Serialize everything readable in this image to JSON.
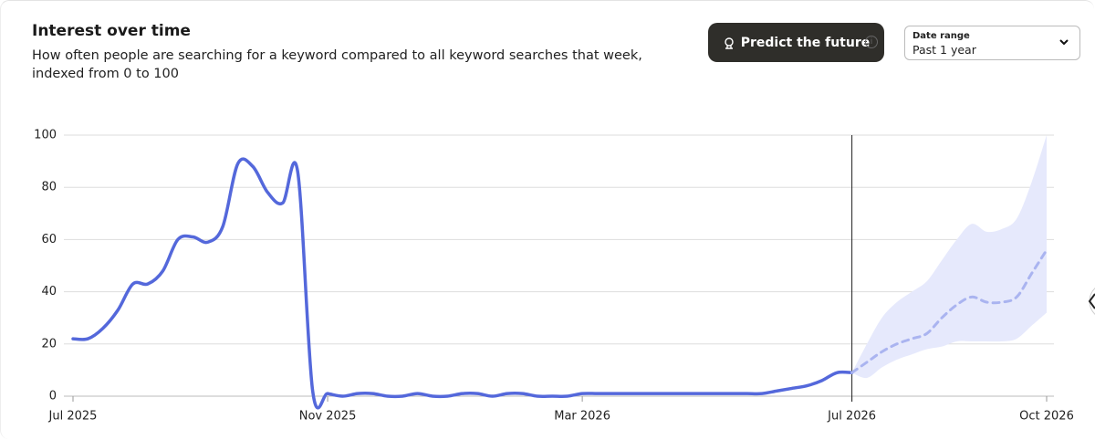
{
  "ui": {
    "button": "Predict the future",
    "dropdown_label": "Date range",
    "dropdown_value": "Past 1 year"
  },
  "chart_data": {
    "type": "line",
    "title": "Interest over time",
    "subtitle": "How often people are searching for a keyword compared to all keyword searches that week, indexed from 0 to 100",
    "x": [
      0,
      1,
      2,
      3,
      4,
      5,
      6,
      7,
      8,
      9,
      10,
      11,
      12,
      13,
      14,
      15,
      16,
      17,
      18,
      19,
      20,
      21,
      22,
      23,
      24,
      25,
      26,
      27,
      28,
      29,
      30,
      31,
      32,
      33,
      34,
      35,
      36,
      37,
      38,
      39,
      40,
      41,
      42,
      43,
      44,
      45,
      46,
      47,
      48,
      49,
      50,
      51,
      52,
      53,
      54,
      55,
      56,
      57,
      58,
      59,
      60,
      61,
      62,
      63,
      64,
      65
    ],
    "series": [
      {
        "color": "#5468db",
        "style": "solid",
        "values": [
          22,
          22,
          26,
          33,
          43,
          43,
          48,
          60,
          61,
          59,
          65,
          89,
          88,
          78,
          74,
          86,
          2,
          1,
          0,
          1,
          1,
          0,
          0,
          1,
          0,
          0,
          1,
          1,
          0,
          1,
          1,
          0,
          0,
          0,
          1,
          1,
          1,
          1,
          1,
          1,
          1,
          1,
          1,
          1,
          1,
          1,
          1,
          2,
          3,
          4,
          6,
          9,
          9,
          null,
          null,
          null,
          null,
          null,
          null,
          null,
          null,
          null,
          null,
          null,
          null,
          null
        ]
      },
      {
        "color": "#aab4f0",
        "style": "dashed",
        "values": [
          null,
          null,
          null,
          null,
          null,
          null,
          null,
          null,
          null,
          null,
          null,
          null,
          null,
          null,
          null,
          null,
          null,
          null,
          null,
          null,
          null,
          null,
          null,
          null,
          null,
          null,
          null,
          null,
          null,
          null,
          null,
          null,
          null,
          null,
          null,
          null,
          null,
          null,
          null,
          null,
          null,
          null,
          null,
          null,
          null,
          null,
          null,
          null,
          null,
          null,
          null,
          null,
          9,
          13,
          17,
          20,
          22,
          24,
          30,
          35,
          38,
          36,
          36,
          38,
          47,
          56
        ]
      }
    ],
    "band": {
      "color": "#e6e9fc",
      "lower": [
        null,
        null,
        null,
        null,
        null,
        null,
        null,
        null,
        null,
        null,
        null,
        null,
        null,
        null,
        null,
        null,
        null,
        null,
        null,
        null,
        null,
        null,
        null,
        null,
        null,
        null,
        null,
        null,
        null,
        null,
        null,
        null,
        null,
        null,
        null,
        null,
        null,
        null,
        null,
        null,
        null,
        null,
        null,
        null,
        null,
        null,
        null,
        null,
        null,
        null,
        null,
        null,
        9,
        7,
        11,
        14,
        16,
        18,
        19,
        21,
        21,
        21,
        21,
        22,
        27,
        32
      ],
      "upper": [
        null,
        null,
        null,
        null,
        null,
        null,
        null,
        null,
        null,
        null,
        null,
        null,
        null,
        null,
        null,
        null,
        null,
        null,
        null,
        null,
        null,
        null,
        null,
        null,
        null,
        null,
        null,
        null,
        null,
        null,
        null,
        null,
        null,
        null,
        null,
        null,
        null,
        null,
        null,
        null,
        null,
        null,
        null,
        null,
        null,
        null,
        null,
        null,
        null,
        null,
        null,
        null,
        9,
        20,
        30,
        36,
        40,
        44,
        52,
        60,
        66,
        63,
        64,
        68,
        82,
        100
      ]
    },
    "marker_x": 52,
    "xlim": [
      0,
      65
    ],
    "xticks": [
      {
        "value": 0,
        "label": "Jul 2025"
      },
      {
        "value": 17,
        "label": "Nov 2025"
      },
      {
        "value": 34,
        "label": "Mar 2026"
      },
      {
        "value": 52,
        "label": "Jul 2026"
      },
      {
        "value": 65,
        "label": "Oct 2026"
      }
    ],
    "ylim": [
      0,
      100
    ],
    "yticks": [
      0,
      20,
      40,
      60,
      80,
      100
    ],
    "grid": true
  }
}
